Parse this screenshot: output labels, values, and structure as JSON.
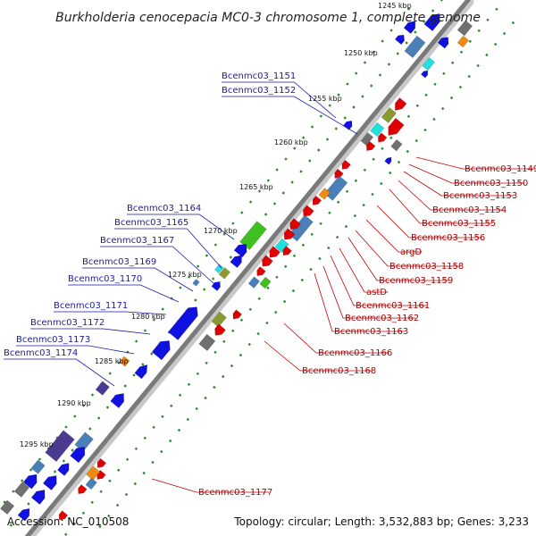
{
  "title": "Burkholderia cenocepacia MC0-3 chromosome 1, complete genome",
  "accession": "Accession: NC_010508",
  "summary": "Topology: circular; Length: 3,532,883 bp; Genes: 3,233",
  "kbp_ticks": [
    "1245 kbp",
    "1250 kbp",
    "1255 kbp",
    "1260 kbp",
    "1265 kbp",
    "1270 kbp",
    "1275 kbp",
    "1280 kbp",
    "1285 kbp",
    "1290 kbp",
    "1295 kbp"
  ],
  "left_labels": [
    "Bcenmc03_1151",
    "Bcenmc03_1152",
    "Bcenmc03_1164",
    "Bcenmc03_1165",
    "Bcenmc03_1167",
    "Bcenmc03_1169",
    "Bcenmc03_1170",
    "Bcenmc03_1171",
    "Bcenmc03_1172",
    "Bcenmc03_1173",
    "Bcenmc03_1174"
  ],
  "right_labels": [
    "Bcenmc03_1149",
    "Bcenmc03_1150",
    "Bcenmc03_1153",
    "Bcenmc03_1154",
    "Bcenmc03_1155",
    "Bcenmc03_1156",
    "argD",
    "Bcenmc03_1158",
    "Bcenmc03_1159",
    "astD",
    "Bcenmc03_1161",
    "Bcenmc03_1162",
    "Bcenmc03_1163",
    "Bcenmc03_1166",
    "Bcenmc03_1168",
    "Bcenmc03_1177"
  ],
  "colors": {
    "forward_gene": "#1010e0",
    "reverse_gene": "#e00000",
    "green": "#40c020",
    "olive": "#8a9a30",
    "cyan": "#20e0e0",
    "orange": "#f08a10",
    "grey": "#707070",
    "steel": "#4a80b8",
    "purple": "#4a3a90",
    "backbone": "#808080",
    "tick": "#2a8a2a"
  }
}
